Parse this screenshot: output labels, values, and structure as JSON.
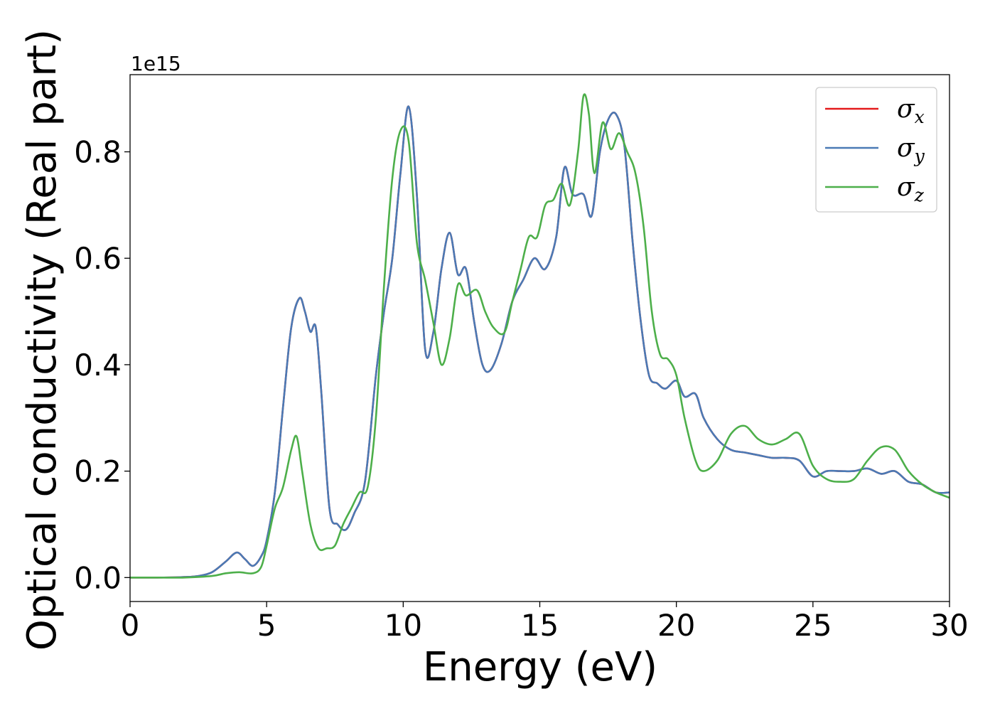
{
  "chart_data": {
    "type": "line",
    "xlabel": "Energy (eV)",
    "ylabel": "Optical conductivity (Real part)",
    "y_offset_label": "1e15",
    "xlim": [
      0,
      30
    ],
    "ylim": [
      -0.045,
      0.945
    ],
    "xticks": [
      0,
      5,
      10,
      15,
      20,
      25,
      30
    ],
    "xtick_labels": [
      "0",
      "5",
      "10",
      "15",
      "20",
      "25",
      "30"
    ],
    "yticks": [
      0.0,
      0.2,
      0.4,
      0.6,
      0.8
    ],
    "ytick_labels": [
      "0.0",
      "0.2",
      "0.4",
      "0.6",
      "0.8"
    ],
    "grid": false,
    "legend_position": "top-right",
    "series": [
      {
        "name": "σx",
        "name_base": "σ",
        "name_sub": "x",
        "color": "#e41a1c",
        "x": [
          0,
          1,
          2,
          2.5,
          3,
          3.5,
          3.9,
          4.2,
          4.5,
          4.8,
          5,
          5.3,
          5.6,
          5.9,
          6.2,
          6.4,
          6.6,
          6.8,
          7,
          7.3,
          7.6,
          7.9,
          8.2,
          8.6,
          9,
          9.3,
          9.6,
          9.9,
          10.2,
          10.5,
          10.8,
          11.1,
          11.4,
          11.7,
          12,
          12.3,
          12.6,
          12.9,
          13.2,
          13.6,
          14,
          14.4,
          14.8,
          15.2,
          15.6,
          15.9,
          16.2,
          16.6,
          16.9,
          17.2,
          17.5,
          17.8,
          18.1,
          18.4,
          18.7,
          19,
          19.3,
          19.6,
          20,
          20.3,
          20.7,
          21,
          21.5,
          22,
          22.5,
          23,
          23.5,
          24,
          24.5,
          25,
          25.5,
          26,
          26.5,
          27,
          27.5,
          28,
          28.5,
          29,
          29.5,
          30
        ],
        "y": [
          0,
          0,
          0.001,
          0.003,
          0.01,
          0.03,
          0.047,
          0.035,
          0.022,
          0.04,
          0.07,
          0.16,
          0.32,
          0.47,
          0.525,
          0.5,
          0.462,
          0.47,
          0.35,
          0.13,
          0.1,
          0.09,
          0.12,
          0.18,
          0.38,
          0.5,
          0.6,
          0.76,
          0.885,
          0.72,
          0.43,
          0.46,
          0.58,
          0.648,
          0.57,
          0.58,
          0.48,
          0.4,
          0.39,
          0.44,
          0.52,
          0.56,
          0.6,
          0.58,
          0.64,
          0.77,
          0.72,
          0.72,
          0.68,
          0.8,
          0.86,
          0.87,
          0.81,
          0.63,
          0.48,
          0.38,
          0.365,
          0.355,
          0.37,
          0.34,
          0.345,
          0.3,
          0.26,
          0.24,
          0.235,
          0.23,
          0.225,
          0.225,
          0.22,
          0.19,
          0.2,
          0.2,
          0.2,
          0.205,
          0.195,
          0.2,
          0.18,
          0.175,
          0.16,
          0.16
        ]
      },
      {
        "name": "σy",
        "name_base": "σ",
        "name_sub": "y",
        "color": "#4a7ab5",
        "x": [
          0,
          1,
          2,
          2.5,
          3,
          3.5,
          3.9,
          4.2,
          4.5,
          4.8,
          5,
          5.3,
          5.6,
          5.9,
          6.2,
          6.4,
          6.6,
          6.8,
          7,
          7.3,
          7.6,
          7.9,
          8.2,
          8.6,
          9,
          9.3,
          9.6,
          9.9,
          10.2,
          10.5,
          10.8,
          11.1,
          11.4,
          11.7,
          12,
          12.3,
          12.6,
          12.9,
          13.2,
          13.6,
          14,
          14.4,
          14.8,
          15.2,
          15.6,
          15.9,
          16.2,
          16.6,
          16.9,
          17.2,
          17.5,
          17.8,
          18.1,
          18.4,
          18.7,
          19,
          19.3,
          19.6,
          20,
          20.3,
          20.7,
          21,
          21.5,
          22,
          22.5,
          23,
          23.5,
          24,
          24.5,
          25,
          25.5,
          26,
          26.5,
          27,
          27.5,
          28,
          28.5,
          29,
          29.5,
          30
        ],
        "y": [
          0,
          0,
          0.001,
          0.003,
          0.01,
          0.03,
          0.047,
          0.035,
          0.022,
          0.04,
          0.07,
          0.16,
          0.32,
          0.47,
          0.525,
          0.5,
          0.462,
          0.47,
          0.35,
          0.13,
          0.1,
          0.09,
          0.12,
          0.18,
          0.38,
          0.5,
          0.6,
          0.76,
          0.885,
          0.72,
          0.43,
          0.46,
          0.58,
          0.648,
          0.57,
          0.58,
          0.48,
          0.4,
          0.39,
          0.44,
          0.52,
          0.56,
          0.6,
          0.58,
          0.64,
          0.77,
          0.72,
          0.72,
          0.68,
          0.8,
          0.86,
          0.87,
          0.81,
          0.63,
          0.48,
          0.38,
          0.365,
          0.355,
          0.37,
          0.34,
          0.345,
          0.3,
          0.26,
          0.24,
          0.235,
          0.23,
          0.225,
          0.225,
          0.22,
          0.19,
          0.2,
          0.2,
          0.2,
          0.205,
          0.195,
          0.2,
          0.18,
          0.175,
          0.16,
          0.16
        ]
      },
      {
        "name": "σz",
        "name_base": "σ",
        "name_sub": "z",
        "color": "#4daf4a",
        "x": [
          0,
          1,
          2,
          3,
          3.5,
          4,
          4.5,
          4.8,
          5,
          5.3,
          5.6,
          5.9,
          6.1,
          6.3,
          6.6,
          6.9,
          7.2,
          7.5,
          7.8,
          8.1,
          8.4,
          8.7,
          9,
          9.3,
          9.6,
          9.9,
          10.2,
          10.5,
          10.8,
          11.1,
          11.4,
          11.7,
          12,
          12.3,
          12.7,
          13,
          13.3,
          13.7,
          14,
          14.3,
          14.6,
          14.9,
          15.2,
          15.5,
          15.8,
          16.1,
          16.4,
          16.6,
          16.8,
          17,
          17.3,
          17.6,
          17.9,
          18.2,
          18.5,
          18.8,
          19.1,
          19.4,
          19.7,
          20,
          20.3,
          20.7,
          21,
          21.5,
          22,
          22.5,
          23,
          23.5,
          24,
          24.5,
          25,
          25.5,
          26,
          26.5,
          27,
          27.5,
          28,
          28.5,
          29,
          29.5,
          30
        ],
        "y": [
          0,
          0,
          0,
          0.003,
          0.008,
          0.01,
          0.008,
          0.02,
          0.06,
          0.13,
          0.17,
          0.24,
          0.265,
          0.2,
          0.1,
          0.055,
          0.055,
          0.06,
          0.1,
          0.13,
          0.16,
          0.17,
          0.3,
          0.55,
          0.75,
          0.84,
          0.82,
          0.63,
          0.56,
          0.48,
          0.4,
          0.45,
          0.55,
          0.53,
          0.54,
          0.5,
          0.47,
          0.46,
          0.52,
          0.58,
          0.64,
          0.64,
          0.7,
          0.71,
          0.74,
          0.7,
          0.8,
          0.905,
          0.87,
          0.76,
          0.855,
          0.805,
          0.835,
          0.8,
          0.76,
          0.66,
          0.5,
          0.42,
          0.41,
          0.38,
          0.3,
          0.22,
          0.2,
          0.22,
          0.27,
          0.285,
          0.26,
          0.25,
          0.26,
          0.27,
          0.21,
          0.185,
          0.18,
          0.185,
          0.22,
          0.245,
          0.24,
          0.2,
          0.175,
          0.16,
          0.15
        ]
      }
    ]
  }
}
